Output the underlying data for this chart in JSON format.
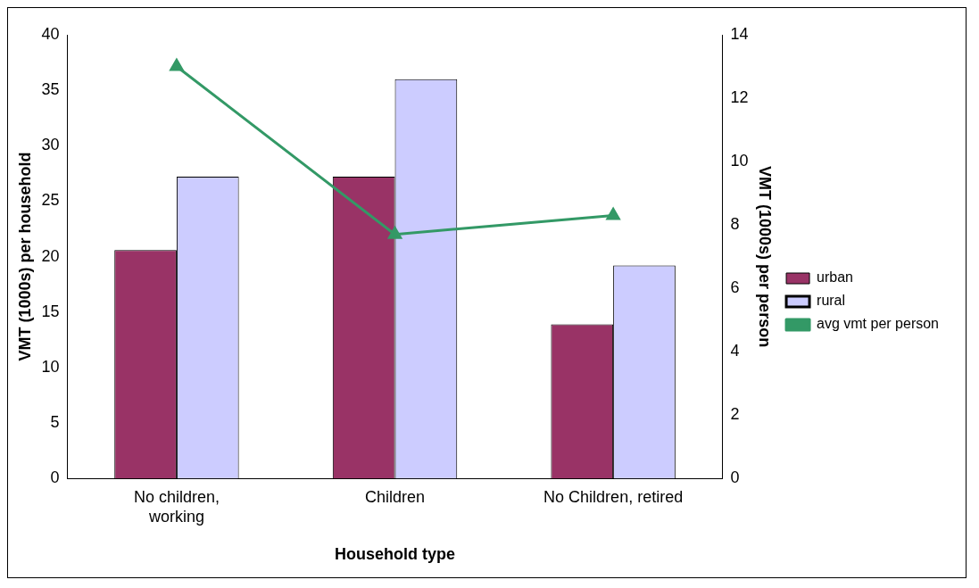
{
  "chart_data": {
    "type": "bar",
    "xlabel": "Household type",
    "ylabel": "VMT (1000s) per household",
    "y2label": "VMT (1000s) per person",
    "categories": [
      "No children, working",
      "Children",
      "No Children, retired"
    ],
    "series": [
      {
        "name": "urban",
        "color": "#993366",
        "values": [
          20.6,
          27.2,
          13.9
        ]
      },
      {
        "name": "rural",
        "color": "#ccccff",
        "values": [
          27.2,
          36.0,
          19.2
        ]
      },
      {
        "name": "avg vmt per person",
        "type": "line",
        "axis": "y2",
        "color": "#339966",
        "values": [
          13.0,
          7.7,
          8.3
        ]
      }
    ],
    "ylim": [
      0,
      40
    ],
    "yticks": [
      0,
      5,
      10,
      15,
      20,
      25,
      30,
      35,
      40
    ],
    "y2lim": [
      0,
      14
    ],
    "y2ticks": [
      0,
      2,
      4,
      6,
      8,
      10,
      12,
      14
    ],
    "legend": "right",
    "marker": "triangle",
    "grid": false
  }
}
